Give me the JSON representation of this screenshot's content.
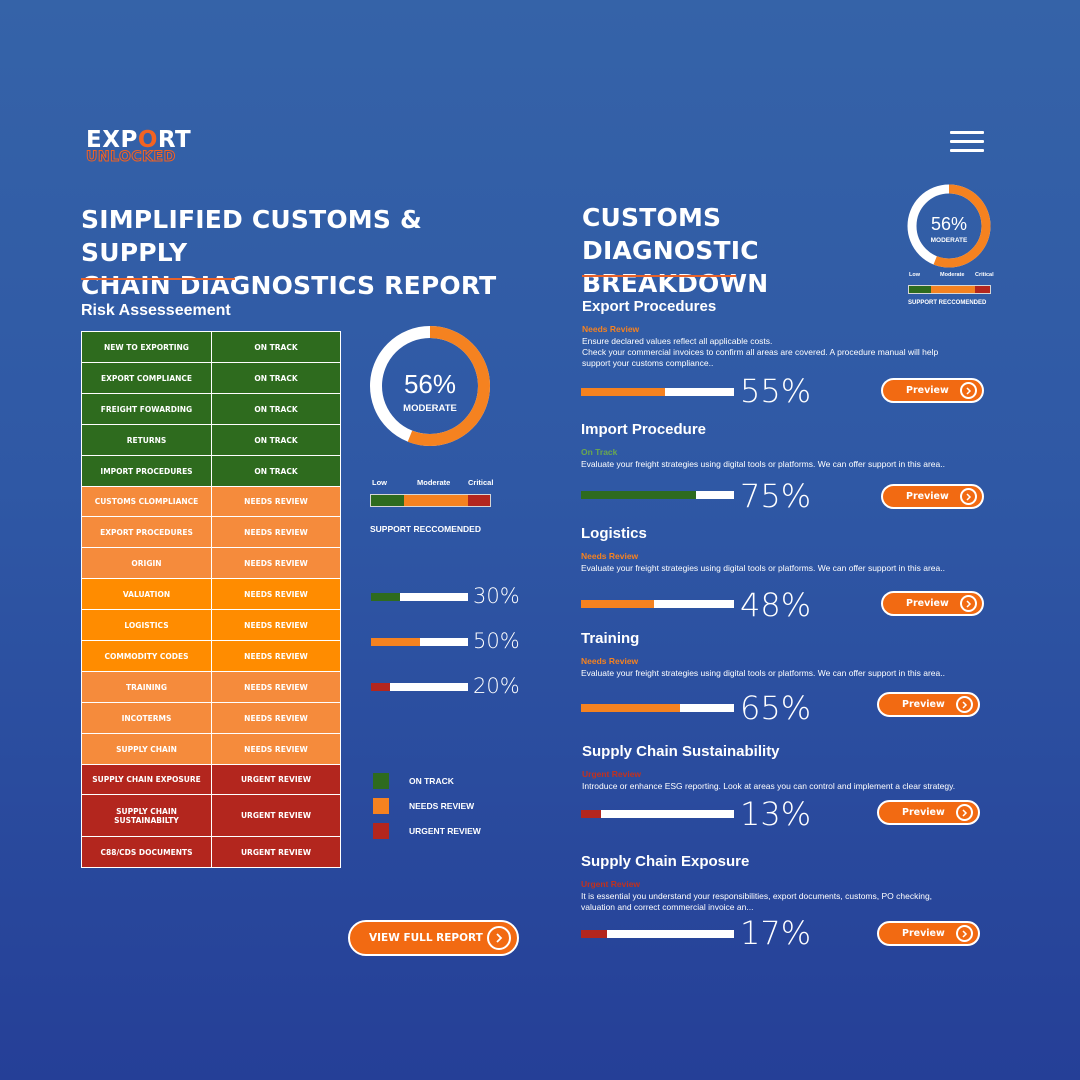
{
  "brand": {
    "logo_top_a": "EXP",
    "logo_top_lock": "O",
    "logo_top_b": "RT",
    "logo_bottom": "UNLOCKED"
  },
  "left": {
    "title_line1": "SIMPLIFIED CUSTOMS & SUPPLY",
    "title_line2": "CHAIN DIAGNOSTICS REPORT",
    "risk_title": "Risk Assesseement",
    "risk_rows": [
      {
        "area": "NEW TO EXPORTING",
        "status": "ON TRACK"
      },
      {
        "area": "EXPORT COMPLIANCE",
        "status": "ON TRACK"
      },
      {
        "area": "FREIGHT FOWARDING",
        "status": "ON TRACK"
      },
      {
        "area": "RETURNS",
        "status": "ON TRACK"
      },
      {
        "area": "IMPORT PROCEDURES",
        "status": "ON TRACK"
      },
      {
        "area": "CUSTOMS CLOMPLIANCE",
        "status": "NEEDS REVIEW"
      },
      {
        "area": "EXPORT PROCEDURES",
        "status": "NEEDS REVIEW"
      },
      {
        "area": "ORIGIN",
        "status": "NEEDS REVIEW"
      },
      {
        "area": "VALUATION",
        "status": "NEEDS REVIEW"
      },
      {
        "area": "LOGISTICS",
        "status": "NEEDS REVIEW"
      },
      {
        "area": "COMMODITY CODES",
        "status": "NEEDS REVIEW"
      },
      {
        "area": "TRAINING",
        "status": "NEEDS REVIEW"
      },
      {
        "area": "INCOTERMS",
        "status": "NEEDS REVIEW"
      },
      {
        "area": "SUPPLY CHAIN",
        "status": "NEEDS REVIEW"
      },
      {
        "area": "SUPPLY CHAIN EXPOSURE",
        "status": "URGENT REVIEW"
      },
      {
        "area": "SUPPLY CHAIN SUSTAINABILTY",
        "status": "URGENT REVIEW"
      },
      {
        "area": "C88/CDS DOCUMENTS",
        "status": "URGENT REVIEW"
      }
    ],
    "donut": {
      "value_text": "56%",
      "label": "MODERATE",
      "fraction": 0.56
    },
    "scale": {
      "low": "Low",
      "moderate": "Moderate",
      "critical": "Critical",
      "caption": "SUPPORT RECCOMENDED"
    },
    "bars": [
      {
        "text": "30%",
        "fraction": 0.3,
        "color": "#2e6b1e"
      },
      {
        "text": "50%",
        "fraction": 0.5,
        "color": "#f58220"
      },
      {
        "text": "20%",
        "fraction": 0.2,
        "color": "#b3261e"
      }
    ],
    "legend": [
      {
        "label": "ON TRACK",
        "color": "#2e6b1e"
      },
      {
        "label": "NEEDS REVIEW",
        "color": "#f58220"
      },
      {
        "label": "URGENT REVIEW",
        "color": "#b3261e"
      }
    ],
    "view_full_report": "VIEW FULL REPORT"
  },
  "right": {
    "title_line1": "CUSTOMS DIAGNOSTIC",
    "title_line2": "BREAKDOWN",
    "donut": {
      "value_text": "56%",
      "label": "MODERATE",
      "fraction": 0.56
    },
    "scale": {
      "low": "Low",
      "moderate": "Moderate",
      "critical": "Critical",
      "caption": "SUPPORT RECCOMENDED"
    },
    "preview_label": "Preview",
    "sections": [
      {
        "title": "Export Procedures",
        "status": "Needs Review",
        "status_color": "#f58220",
        "desc_lines": [
          "Ensure declared values reflect all applicable costs.",
          "Check your commercial invoices to confirm all areas are covered. A procedure manual will help",
          "support your customs compliance.."
        ],
        "pct_text": "55%",
        "fraction": 0.55,
        "bar_color": "#f58220"
      },
      {
        "title": "Import Procedure",
        "status": "On Track",
        "status_color": "#6aa84f",
        "desc_lines": [
          "Evaluate your freight strategies using digital tools or platforms. We can offer support in this area.."
        ],
        "pct_text": "75%",
        "fraction": 0.75,
        "bar_color": "#2e6b1e"
      },
      {
        "title": "Logistics",
        "status": "Needs Review",
        "status_color": "#f58220",
        "desc_lines": [
          "Evaluate your freight strategies using digital tools or platforms. We can offer support in this area.."
        ],
        "pct_text": "48%",
        "fraction": 0.48,
        "bar_color": "#f58220"
      },
      {
        "title": "Training",
        "status": "Needs Review",
        "status_color": "#f58220",
        "desc_lines": [
          "Evaluate your freight strategies using digital tools or platforms. We can offer support in this area.."
        ],
        "pct_text": "65%",
        "fraction": 0.65,
        "bar_color": "#f58220"
      },
      {
        "title": "Supply Chain Sustainability",
        "status": "Urgent Review",
        "status_color": "#c0321f",
        "desc_lines": [
          "Introduce or enhance ESG reporting. Look at areas you can control and implement a clear strategy."
        ],
        "pct_text": "13%",
        "fraction": 0.13,
        "bar_color": "#b3261e"
      },
      {
        "title": "Supply Chain Exposure",
        "status": "Urgent Review",
        "status_color": "#c0321f",
        "desc_lines": [
          "It is essential you understand your responsibilities, export documents, customs, PO checking,",
          "valuation and correct commercial invoice an..."
        ],
        "pct_text": "17%",
        "fraction": 0.17,
        "bar_color": "#b3261e"
      }
    ]
  },
  "colors": {
    "on_track": "#2e6b1e",
    "needs_review": "#f58220",
    "urgent_review": "#b3261e",
    "accent": "#f26a12"
  },
  "icons": {
    "menu": "hamburger-icon",
    "arrow": "chevron-right-icon"
  }
}
